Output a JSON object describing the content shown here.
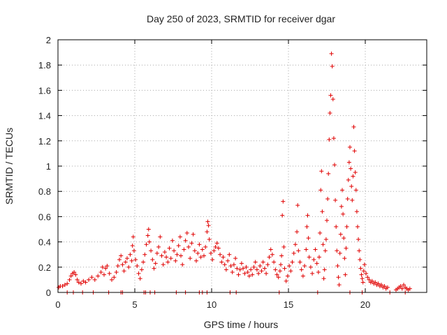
{
  "chart_data": {
    "type": "scatter",
    "title": "Day 250 of 2023, SRMTID for receiver dgar",
    "xlabel": "GPS time / hours",
    "ylabel": "SRMTID / TECUs",
    "xlim": [
      0,
      24
    ],
    "ylim": [
      0,
      2
    ],
    "xticks": [
      0,
      5,
      10,
      15,
      20
    ],
    "yticks": [
      0,
      0.2,
      0.4,
      0.6,
      0.8,
      1,
      1.2,
      1.4,
      1.6,
      1.8,
      2
    ],
    "xtick_labels": [
      "0",
      "5",
      "10",
      "15",
      "20"
    ],
    "ytick_labels": [
      "0",
      "0.2",
      "0.4",
      "0.6",
      "0.8",
      "1",
      "1.2",
      "1.4",
      "1.6",
      "1.8",
      "2"
    ],
    "grid": true,
    "marker": "+",
    "color": "#e00000",
    "series": [
      {
        "name": "dgar",
        "points": [
          [
            0.05,
            0.04
          ],
          [
            0.15,
            0.05
          ],
          [
            0.3,
            0.05
          ],
          [
            0.45,
            0.06
          ],
          [
            0.6,
            0.07
          ],
          [
            0.75,
            0.1
          ],
          [
            0.85,
            0.13
          ],
          [
            0.95,
            0.15
          ],
          [
            1.05,
            0.16
          ],
          [
            1.15,
            0.14
          ],
          [
            1.25,
            0.1
          ],
          [
            1.35,
            0.08
          ],
          [
            1.5,
            0.07
          ],
          [
            1.65,
            0.09
          ],
          [
            1.8,
            0.08
          ],
          [
            2.0,
            0.1
          ],
          [
            2.2,
            0.12
          ],
          [
            2.4,
            0.1
          ],
          [
            2.6,
            0.13
          ],
          [
            2.8,
            0.16
          ],
          [
            2.9,
            0.2
          ],
          [
            3.0,
            0.14
          ],
          [
            3.1,
            0.19
          ],
          [
            3.2,
            0.21
          ],
          [
            3.35,
            0.15
          ],
          [
            3.5,
            0.1
          ],
          [
            3.65,
            0.12
          ],
          [
            3.8,
            0.16
          ],
          [
            3.9,
            0.21
          ],
          [
            4.0,
            0.26
          ],
          [
            4.1,
            0.29
          ],
          [
            4.2,
            0.22
          ],
          [
            4.3,
            0.17
          ],
          [
            4.4,
            0.24
          ],
          [
            4.5,
            0.27
          ],
          [
            4.6,
            0.2
          ],
          [
            4.7,
            0.3
          ],
          [
            4.8,
            0.25
          ],
          [
            4.85,
            0.37
          ],
          [
            4.9,
            0.44
          ],
          [
            4.95,
            0.33
          ],
          [
            5.05,
            0.26
          ],
          [
            5.15,
            0.21
          ],
          [
            5.25,
            0.15
          ],
          [
            5.35,
            0.11
          ],
          [
            5.45,
            0.18
          ],
          [
            5.55,
            0.24
          ],
          [
            5.65,
            0.3
          ],
          [
            5.75,
            0.38
          ],
          [
            5.85,
            0.45
          ],
          [
            5.9,
            0.5
          ],
          [
            5.95,
            0.4
          ],
          [
            6.05,
            0.33
          ],
          [
            6.15,
            0.26
          ],
          [
            6.25,
            0.19
          ],
          [
            6.35,
            0.23
          ],
          [
            6.45,
            0.31
          ],
          [
            6.55,
            0.36
          ],
          [
            6.65,
            0.44
          ],
          [
            6.75,
            0.29
          ],
          [
            6.85,
            0.22
          ],
          [
            6.95,
            0.32
          ],
          [
            7.05,
            0.28
          ],
          [
            7.15,
            0.24
          ],
          [
            7.25,
            0.35
          ],
          [
            7.35,
            0.27
          ],
          [
            7.45,
            0.41
          ],
          [
            7.55,
            0.33
          ],
          [
            7.65,
            0.25
          ],
          [
            7.75,
            0.3
          ],
          [
            7.85,
            0.37
          ],
          [
            7.95,
            0.44
          ],
          [
            8.0,
            0.29
          ],
          [
            8.1,
            0.22
          ],
          [
            8.2,
            0.34
          ],
          [
            8.3,
            0.41
          ],
          [
            8.4,
            0.47
          ],
          [
            8.5,
            0.36
          ],
          [
            8.6,
            0.27
          ],
          [
            8.7,
            0.39
          ],
          [
            8.8,
            0.46
          ],
          [
            8.9,
            0.33
          ],
          [
            9.0,
            0.25
          ],
          [
            9.1,
            0.31
          ],
          [
            9.2,
            0.38
          ],
          [
            9.3,
            0.28
          ],
          [
            9.4,
            0.34
          ],
          [
            9.5,
            0.29
          ],
          [
            9.6,
            0.36
          ],
          [
            9.7,
            0.48
          ],
          [
            9.75,
            0.56
          ],
          [
            9.8,
            0.53
          ],
          [
            9.85,
            0.42
          ],
          [
            9.95,
            0.31
          ],
          [
            10.05,
            0.26
          ],
          [
            10.15,
            0.33
          ],
          [
            10.25,
            0.36
          ],
          [
            10.35,
            0.39
          ],
          [
            10.45,
            0.35
          ],
          [
            10.55,
            0.3
          ],
          [
            10.65,
            0.24
          ],
          [
            10.75,
            0.28
          ],
          [
            10.85,
            0.22
          ],
          [
            10.95,
            0.18
          ],
          [
            11.05,
            0.25
          ],
          [
            11.15,
            0.3
          ],
          [
            11.25,
            0.21
          ],
          [
            11.35,
            0.16
          ],
          [
            11.45,
            0.22
          ],
          [
            11.55,
            0.27
          ],
          [
            11.65,
            0.19
          ],
          [
            11.75,
            0.14
          ],
          [
            11.85,
            0.18
          ],
          [
            11.95,
            0.23
          ],
          [
            12.05,
            0.19
          ],
          [
            12.15,
            0.15
          ],
          [
            12.25,
            0.2
          ],
          [
            12.35,
            0.16
          ],
          [
            12.45,
            0.13
          ],
          [
            12.55,
            0.18
          ],
          [
            12.65,
            0.14
          ],
          [
            12.75,
            0.2
          ],
          [
            12.85,
            0.24
          ],
          [
            12.95,
            0.18
          ],
          [
            13.05,
            0.15
          ],
          [
            13.15,
            0.21
          ],
          [
            13.25,
            0.17
          ],
          [
            13.35,
            0.24
          ],
          [
            13.45,
            0.19
          ],
          [
            13.55,
            0.15
          ],
          [
            13.65,
            0.22
          ],
          [
            13.75,
            0.28
          ],
          [
            13.85,
            0.34
          ],
          [
            13.95,
            0.3
          ],
          [
            14.05,
            0.24
          ],
          [
            14.15,
            0.18
          ],
          [
            14.25,
            0.14
          ],
          [
            14.35,
            0.12
          ],
          [
            14.45,
            0.17
          ],
          [
            14.5,
            0.22
          ],
          [
            14.55,
            0.29
          ],
          [
            14.6,
            0.61
          ],
          [
            14.65,
            0.72
          ],
          [
            14.7,
            0.36
          ],
          [
            14.75,
            0.19
          ],
          [
            14.85,
            0.09
          ],
          [
            14.95,
            0.13
          ],
          [
            15.05,
            0.21
          ],
          [
            15.15,
            0.17
          ],
          [
            15.25,
            0.24
          ],
          [
            15.35,
            0.31
          ],
          [
            15.45,
            0.38
          ],
          [
            15.55,
            0.48
          ],
          [
            15.6,
            0.69
          ],
          [
            15.65,
            0.33
          ],
          [
            15.75,
            0.24
          ],
          [
            15.85,
            0.18
          ],
          [
            15.95,
            0.13
          ],
          [
            16.05,
            0.21
          ],
          [
            16.15,
            0.34
          ],
          [
            16.2,
            0.52
          ],
          [
            16.25,
            0.61
          ],
          [
            16.3,
            0.43
          ],
          [
            16.35,
            0.28
          ],
          [
            16.45,
            0.2
          ],
          [
            16.55,
            0.15
          ],
          [
            16.65,
            0.26
          ],
          [
            16.75,
            0.34
          ],
          [
            16.85,
            0.23
          ],
          [
            16.95,
            0.16
          ],
          [
            17.0,
            0.28
          ],
          [
            17.05,
            0.47
          ],
          [
            17.1,
            0.81
          ],
          [
            17.15,
            0.96
          ],
          [
            17.2,
            0.64
          ],
          [
            17.25,
            0.38
          ],
          [
            17.3,
            0.11
          ],
          [
            17.35,
            0.18
          ],
          [
            17.4,
            0.33
          ],
          [
            17.45,
            0.42
          ],
          [
            17.5,
            0.57
          ],
          [
            17.55,
            0.74
          ],
          [
            17.6,
            0.94
          ],
          [
            17.65,
            1.21
          ],
          [
            17.7,
            1.42
          ],
          [
            17.75,
            1.56
          ],
          [
            17.8,
            1.89
          ],
          [
            17.85,
            1.79
          ],
          [
            17.9,
            1.53
          ],
          [
            17.95,
            1.22
          ],
          [
            18.0,
            1.01
          ],
          [
            18.05,
            0.73
          ],
          [
            18.1,
            0.52
          ],
          [
            18.15,
            0.33
          ],
          [
            18.2,
            0.21
          ],
          [
            18.25,
            0.12
          ],
          [
            18.3,
            0.06
          ],
          [
            18.35,
            0.31
          ],
          [
            18.4,
            0.46
          ],
          [
            18.45,
            0.68
          ],
          [
            18.5,
            0.81
          ],
          [
            18.55,
            0.62
          ],
          [
            18.6,
            0.43
          ],
          [
            18.65,
            0.27
          ],
          [
            18.7,
            0.14
          ],
          [
            18.75,
            0.35
          ],
          [
            18.8,
            0.52
          ],
          [
            18.85,
            0.74
          ],
          [
            18.9,
            0.89
          ],
          [
            18.95,
            1.03
          ],
          [
            19.0,
            1.15
          ],
          [
            19.05,
            0.98
          ],
          [
            19.1,
            0.84
          ],
          [
            19.15,
            0.73
          ],
          [
            19.2,
            0.92
          ],
          [
            19.25,
            1.31
          ],
          [
            19.3,
            1.12
          ],
          [
            19.35,
            0.95
          ],
          [
            19.4,
            0.81
          ],
          [
            19.45,
            0.64
          ],
          [
            19.5,
            0.52
          ],
          [
            19.55,
            0.42
          ],
          [
            19.6,
            0.33
          ],
          [
            19.65,
            0.26
          ],
          [
            19.7,
            0.19
          ],
          [
            19.75,
            0.14
          ],
          [
            19.8,
            0.11
          ],
          [
            19.85,
            0.08
          ],
          [
            19.9,
            0.17
          ],
          [
            19.95,
            0.22
          ],
          [
            20.05,
            0.15
          ],
          [
            20.15,
            0.12
          ],
          [
            20.25,
            0.1
          ],
          [
            20.35,
            0.08
          ],
          [
            20.45,
            0.09
          ],
          [
            20.55,
            0.07
          ],
          [
            20.65,
            0.08
          ],
          [
            20.75,
            0.06
          ],
          [
            20.85,
            0.07
          ],
          [
            20.95,
            0.05
          ],
          [
            21.05,
            0.06
          ],
          [
            21.15,
            0.04
          ],
          [
            21.25,
            0.05
          ],
          [
            21.35,
            0.03
          ],
          [
            21.45,
            0.04
          ],
          [
            22.0,
            0.02
          ],
          [
            22.1,
            0.03
          ],
          [
            22.2,
            0.04
          ],
          [
            22.3,
            0.05
          ],
          [
            22.4,
            0.03
          ],
          [
            22.5,
            0.06
          ],
          [
            22.6,
            0.04
          ],
          [
            22.7,
            0.03
          ],
          [
            22.8,
            0.02
          ],
          [
            22.9,
            0.03
          ]
        ]
      }
    ],
    "zero_markers_x": [
      0.6,
      1.0,
      1.6,
      2.3,
      3.3,
      4.1,
      4.2,
      5.6,
      5.7,
      6.0,
      6.3,
      7.7,
      8.3,
      9.2,
      9.4,
      9.7,
      11.2,
      11.6,
      14.4,
      16.9,
      19.0,
      19.8,
      21.6,
      22.6
    ]
  }
}
